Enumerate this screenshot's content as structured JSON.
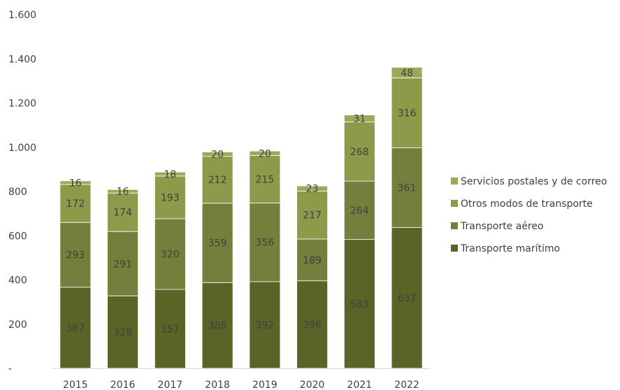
{
  "chart_data": {
    "type": "bar",
    "stacked": true,
    "categories": [
      "2015",
      "2016",
      "2017",
      "2018",
      "2019",
      "2020",
      "2021",
      "2022"
    ],
    "series": [
      {
        "name": "Transporte marítimo",
        "color": "#5a6426",
        "values": [
          367,
          328,
          357,
          388,
          392,
          396,
          583,
          637
        ]
      },
      {
        "name": "Transporte aéreo",
        "color": "#737f3a",
        "values": [
          293,
          291,
          320,
          359,
          356,
          189,
          264,
          361
        ]
      },
      {
        "name": "Otros modos de transporte",
        "color": "#8c9a49",
        "values": [
          172,
          174,
          193,
          212,
          215,
          217,
          268,
          316
        ]
      },
      {
        "name": "Servicios postales y de correo",
        "color": "#9caa58",
        "values": [
          16,
          16,
          18,
          20,
          20,
          23,
          31,
          48
        ]
      }
    ],
    "ylim": [
      0,
      1600
    ],
    "yticks": [
      0,
      200,
      400,
      600,
      800,
      1000,
      1200,
      1400,
      1600
    ],
    "ytick_labels": [
      "-",
      "200",
      "400",
      "600",
      "800",
      "1.000",
      "1.200",
      "1.400",
      "1.600"
    ],
    "grid": false,
    "legend_position": "right",
    "legend_order": [
      "Servicios postales y de correo",
      "Otros modos de transporte",
      "Transporte aéreo",
      "Transporte marítimo"
    ]
  }
}
